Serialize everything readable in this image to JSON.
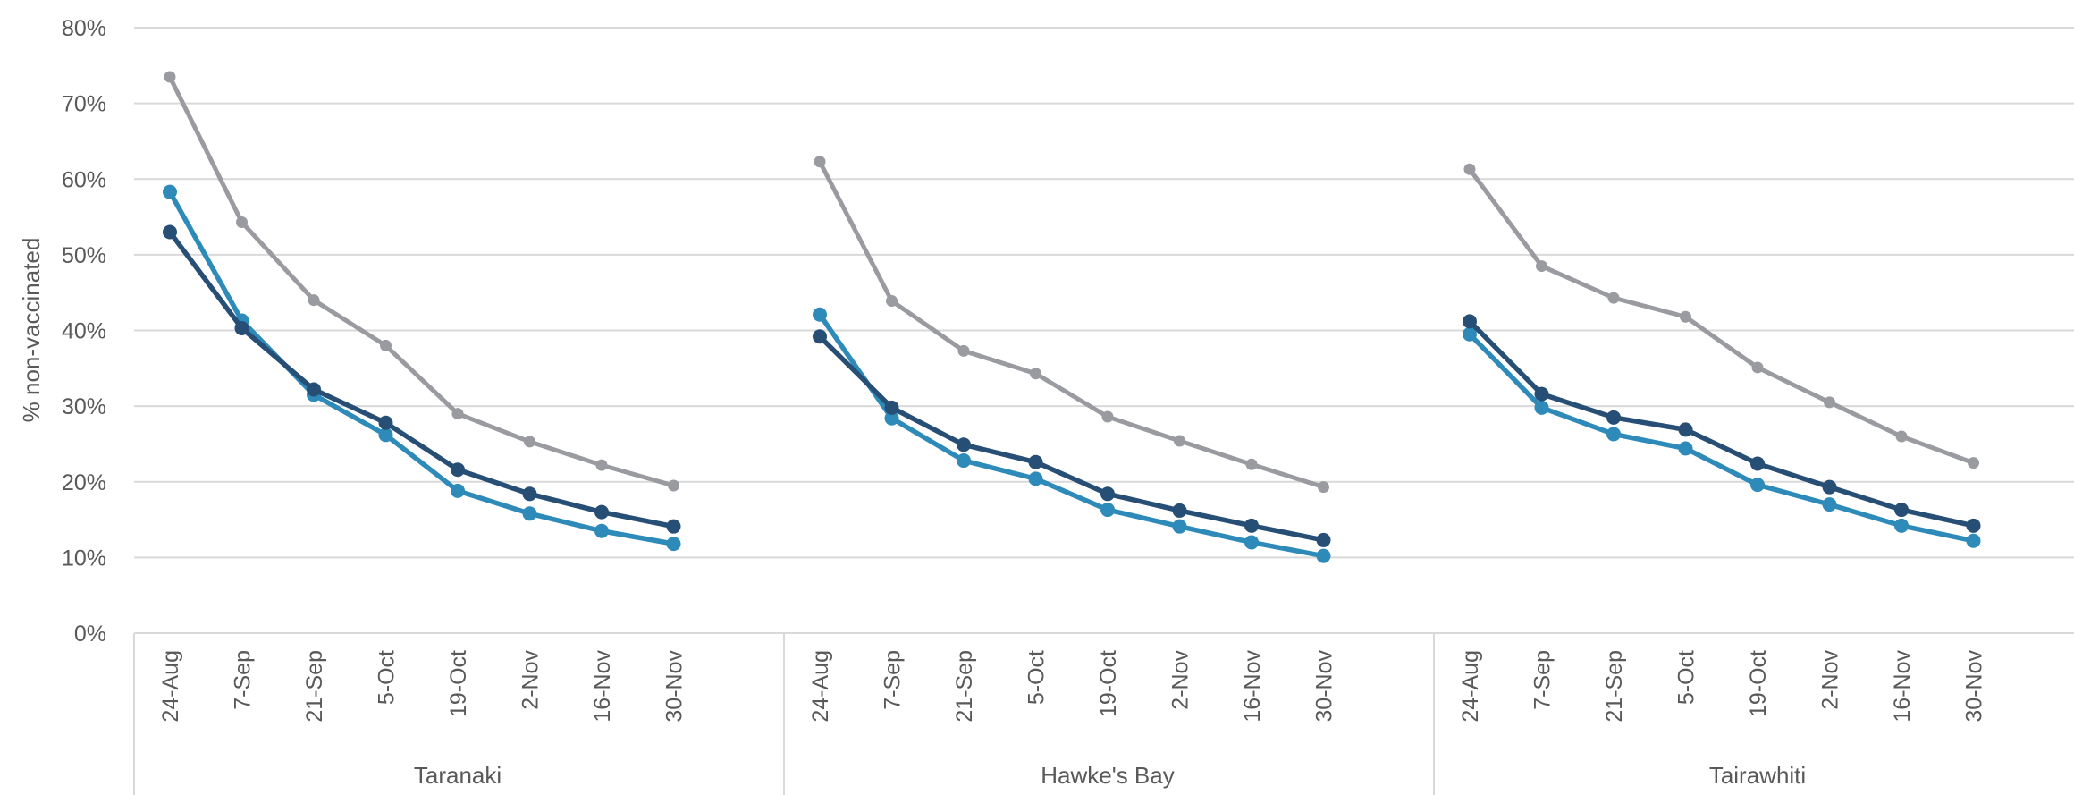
{
  "chart_data": {
    "type": "line",
    "title": "",
    "ylabel": "% non-vaccinated",
    "xlabel": "",
    "ylim": [
      0,
      80
    ],
    "yticks": [
      "0%",
      "10%",
      "20%",
      "30%",
      "40%",
      "50%",
      "60%",
      "70%",
      "80%"
    ],
    "grid": true,
    "legend": "none",
    "groups": [
      {
        "label": "Taranaki",
        "dates": [
          "24-Aug",
          "7-Sep",
          "21-Sep",
          "5-Oct",
          "19-Oct",
          "2-Nov",
          "16-Nov",
          "30-Nov"
        ],
        "series": [
          {
            "color": "#9a9ba1",
            "values": [
              73.5,
              54.3,
              44.0,
              38.0,
              29.0,
              25.3,
              22.2,
              19.5
            ]
          },
          {
            "color": "#2e8bb9",
            "values": [
              58.3,
              41.3,
              31.5,
              26.2,
              18.8,
              15.8,
              13.5,
              11.8
            ]
          },
          {
            "color": "#274e75",
            "values": [
              53.0,
              40.3,
              32.2,
              27.8,
              21.6,
              18.4,
              16.0,
              14.1
            ]
          }
        ]
      },
      {
        "label": "Hawke's Bay",
        "dates": [
          "24-Aug",
          "7-Sep",
          "21-Sep",
          "5-Oct",
          "19-Oct",
          "2-Nov",
          "16-Nov",
          "30-Nov"
        ],
        "series": [
          {
            "color": "#9a9ba1",
            "values": [
              62.3,
              43.9,
              37.3,
              34.3,
              28.6,
              25.4,
              22.3,
              19.3
            ]
          },
          {
            "color": "#2e8bb9",
            "values": [
              42.1,
              28.4,
              22.8,
              20.4,
              16.3,
              14.1,
              12.0,
              10.2
            ]
          },
          {
            "color": "#274e75",
            "values": [
              39.2,
              29.8,
              24.9,
              22.6,
              18.4,
              16.2,
              14.2,
              12.3
            ]
          }
        ]
      },
      {
        "label": "Tairawhiti",
        "dates": [
          "24-Aug",
          "7-Sep",
          "21-Sep",
          "5-Oct",
          "19-Oct",
          "2-Nov",
          "16-Nov",
          "30-Nov"
        ],
        "series": [
          {
            "color": "#9a9ba1",
            "values": [
              61.3,
              48.5,
              44.3,
              41.8,
              35.1,
              30.5,
              26.0,
              22.5
            ]
          },
          {
            "color": "#2e8bb9",
            "values": [
              39.5,
              29.8,
              26.3,
              24.4,
              19.6,
              17.0,
              14.2,
              12.2
            ]
          },
          {
            "color": "#274e75",
            "values": [
              41.2,
              31.6,
              28.5,
              26.9,
              22.4,
              19.3,
              16.3,
              14.2
            ]
          }
        ]
      }
    ]
  }
}
